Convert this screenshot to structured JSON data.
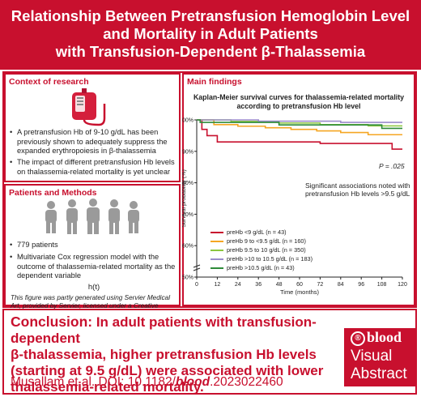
{
  "header": {
    "lines": [
      "Relationship Between Pretransfusion Hemoglobin Level",
      "and Mortality in Adult Patients",
      "with Transfusion-Dependent β-Thalassemia"
    ]
  },
  "context": {
    "title": "Context of research",
    "bullets": [
      "A pretransfusion Hb of 9-10 g/dL has been previously shown to adequately suppress the expanded erythropoiesis in β-thalassemia",
      "The impact of different pretransfusion Hb levels on thalassemia-related mortality is yet unclear"
    ]
  },
  "patients": {
    "title": "Patients and Methods",
    "bullets": [
      "779 patients",
      "Multivariate Cox regression model with the outcome of thalassemia-related mortality as the dependent variable"
    ],
    "formula": "h(t)",
    "credit": "This figure was partly generated using Servier Medical Art, provided by Servier, licensed under a Creative Commons Attribution 3.0 unported license"
  },
  "findings": {
    "title": "Main findings",
    "chart_title_1": "Kaplan-Meier survival curves for thalassemia-related mortality",
    "chart_title_2": "according to pretransfusion Hb level",
    "p_value": "P = .025",
    "note_1": "Significant associations noted with",
    "note_2": "pretransfusion Hb levels >9.5 g/dL"
  },
  "conclusion": {
    "label": "Conclusion:",
    "text_1": " In adult patients with transfusion-dependent",
    "text_2": "β-thalassemia, higher pretransfusion Hb levels",
    "text_3": "(starting at 9.5 g/dL) were associated with lower",
    "text_4": "thalassemia-related mortality.",
    "cite_pre": "Musallam et al. DOI: 10.1182/",
    "cite_em": "blood",
    "cite_post": ".2023022460"
  },
  "logo": {
    "brand": "blood",
    "line1": "Visual",
    "line2": "Abstract"
  },
  "colors": {
    "brand_red": "#c8102e",
    "series_red": "#c8102e",
    "series_orange": "#f5a623",
    "series_lightgreen": "#8cc63f",
    "series_purple": "#9b8ccb",
    "series_darkgreen": "#2e8b3a"
  },
  "chart_data": {
    "type": "line",
    "xlabel": "Time (months)",
    "ylabel": "Survival probability (%)",
    "xlim": [
      0,
      120
    ],
    "ylim": [
      50,
      100
    ],
    "x_ticks": [
      0,
      12,
      24,
      36,
      48,
      60,
      72,
      84,
      96,
      108,
      120
    ],
    "y_ticks": [
      {
        "value": 100,
        "label": "100%"
      },
      {
        "value": 90,
        "label": "90%"
      },
      {
        "value": 80,
        "label": "80%"
      },
      {
        "value": 70,
        "label": "70%"
      },
      {
        "value": 60,
        "label": "60%"
      },
      {
        "value": 50,
        "label": "50%"
      }
    ],
    "series": [
      {
        "name": "preHb <9 g/dL (n = 43)",
        "color": "#c8102e",
        "points": [
          [
            0,
            100
          ],
          [
            3,
            100
          ],
          [
            3,
            97
          ],
          [
            6,
            97
          ],
          [
            6,
            95
          ],
          [
            12,
            95
          ],
          [
            12,
            93
          ],
          [
            72,
            93
          ],
          [
            72,
            92.5
          ],
          [
            114,
            92.5
          ],
          [
            114,
            90.7
          ],
          [
            120,
            90.7
          ]
        ]
      },
      {
        "name": "preHb 9 to <9.5 g/dL (n = 160)",
        "color": "#f5a623",
        "points": [
          [
            0,
            100
          ],
          [
            10,
            100
          ],
          [
            10,
            98.5
          ],
          [
            24,
            98.5
          ],
          [
            24,
            98
          ],
          [
            40,
            98
          ],
          [
            40,
            97.5
          ],
          [
            55,
            97.5
          ],
          [
            55,
            97
          ],
          [
            70,
            97
          ],
          [
            70,
            96.5
          ],
          [
            84,
            96.5
          ],
          [
            84,
            96
          ],
          [
            100,
            96
          ],
          [
            100,
            95.3
          ],
          [
            120,
            95.3
          ]
        ]
      },
      {
        "name": "preHb 9.5 to 10 g/dL (n = 350)",
        "color": "#8cc63f",
        "points": [
          [
            0,
            100
          ],
          [
            20,
            100
          ],
          [
            20,
            99.5
          ],
          [
            48,
            99.5
          ],
          [
            48,
            99
          ],
          [
            72,
            99
          ],
          [
            72,
            98.5
          ],
          [
            100,
            98.5
          ],
          [
            100,
            98.1
          ],
          [
            120,
            98.1
          ]
        ]
      },
      {
        "name": "preHb >10 to 10.5 g/dL (n = 183)",
        "color": "#9b8ccb",
        "points": [
          [
            0,
            100
          ],
          [
            36,
            100
          ],
          [
            36,
            99.6
          ],
          [
            84,
            99.6
          ],
          [
            84,
            99.2
          ],
          [
            120,
            99.2
          ]
        ]
      },
      {
        "name": "preHb >10.5 g/dL (n = 43)",
        "color": "#2e8b3a",
        "points": [
          [
            0,
            100
          ],
          [
            2,
            100
          ],
          [
            2,
            99.2
          ],
          [
            48,
            99.2
          ],
          [
            48,
            98.4
          ],
          [
            108,
            98.4
          ],
          [
            108,
            97.3
          ],
          [
            120,
            97.3
          ]
        ]
      }
    ]
  }
}
